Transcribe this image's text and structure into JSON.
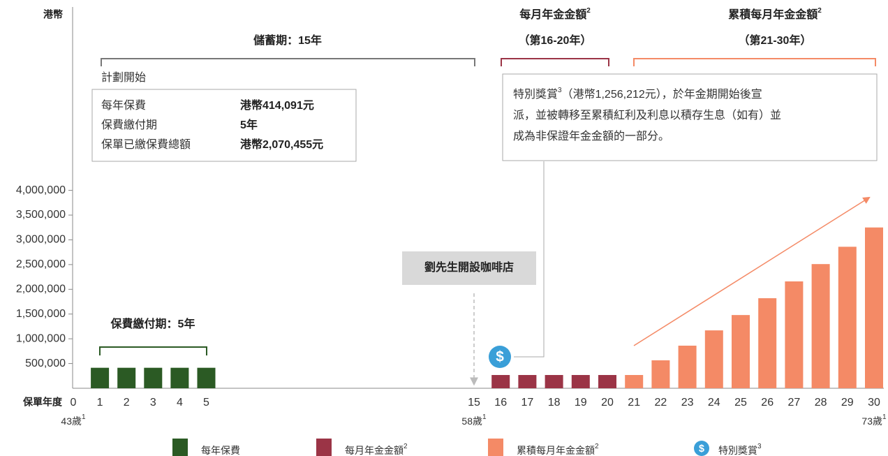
{
  "chart_data": {
    "type": "bar",
    "y_unit": "港幣",
    "x_label": "保單年度",
    "categories": [
      "0",
      "1",
      "2",
      "3",
      "4",
      "5",
      "15",
      "16",
      "17",
      "18",
      "19",
      "20",
      "21",
      "22",
      "23",
      "24",
      "25",
      "26",
      "27",
      "28",
      "29",
      "30"
    ],
    "ages": [
      {
        "index": 0,
        "label": "43歲",
        "note": "1"
      },
      {
        "index": 6,
        "label": "58歲",
        "note": "1"
      },
      {
        "index": 21,
        "label": "73歲",
        "note": "1"
      }
    ],
    "series": [
      {
        "name": "每年保費",
        "color": "#2b5a24",
        "values": [
          null,
          414091,
          414091,
          414091,
          414091,
          414091,
          null,
          null,
          null,
          null,
          null,
          null,
          null,
          null,
          null,
          null,
          null,
          null,
          null,
          null,
          null,
          null
        ]
      },
      {
        "name": "每月年金金額",
        "note": "2",
        "color": "#9b3446",
        "values": [
          null,
          null,
          null,
          null,
          null,
          null,
          null,
          268000,
          268000,
          268000,
          268000,
          268000,
          null,
          null,
          null,
          null,
          null,
          null,
          null,
          null,
          null,
          null
        ]
      },
      {
        "name": "累積每月年金金額",
        "note": "2",
        "color": "#f48a66",
        "values": [
          null,
          null,
          null,
          null,
          null,
          null,
          null,
          null,
          null,
          null,
          null,
          null,
          268000,
          565000,
          861000,
          1170000,
          1480000,
          1820000,
          2160000,
          2510000,
          2860000,
          3250000
        ]
      }
    ],
    "bonus_legend": {
      "name": "特別獎賞",
      "note": "3"
    },
    "ylim": [
      0,
      4000000
    ],
    "yticks": [
      {
        "value": 500000,
        "label": "500,000"
      },
      {
        "value": 1000000,
        "label": "1,000,000"
      },
      {
        "value": 1500000,
        "label": "1,500,000"
      },
      {
        "value": 2000000,
        "label": "2,000,000"
      },
      {
        "value": 2500000,
        "label": "2,500,000"
      },
      {
        "value": 3000000,
        "label": "3,000,000"
      },
      {
        "value": 3500000,
        "label": "3,500,000"
      },
      {
        "value": 4000000,
        "label": "4,000,000"
      }
    ],
    "annotations": {
      "savings_period": "儲蓄期：15年",
      "monthly_title": "每月年金金額",
      "monthly_note": "2",
      "monthly_years": "（第16-20年）",
      "accum_title": "累積每月年金金額",
      "accum_note": "2",
      "accum_years": "（第21-30年）",
      "plan_start": "計劃開始",
      "plan_rows": [
        [
          "每年保費",
          "港幣414,091元"
        ],
        [
          "保費繳付期",
          "5年"
        ],
        [
          "保單已繳保費總額",
          "港幣2,070,455元"
        ]
      ],
      "bonus_title": "特別獎賞",
      "bonus_note": "3",
      "bonus_lines": [
        "（港幣1,256,212元），於年金期開始後宣",
        "派，並被轉移至累積紅利及利息以積存生息（如有）並",
        "成為非保證年金金額的一部分。"
      ],
      "event": "劉先生開設咖啡店",
      "payment_period": "保費繳付期：5年",
      "bonus_icon": "$"
    }
  }
}
